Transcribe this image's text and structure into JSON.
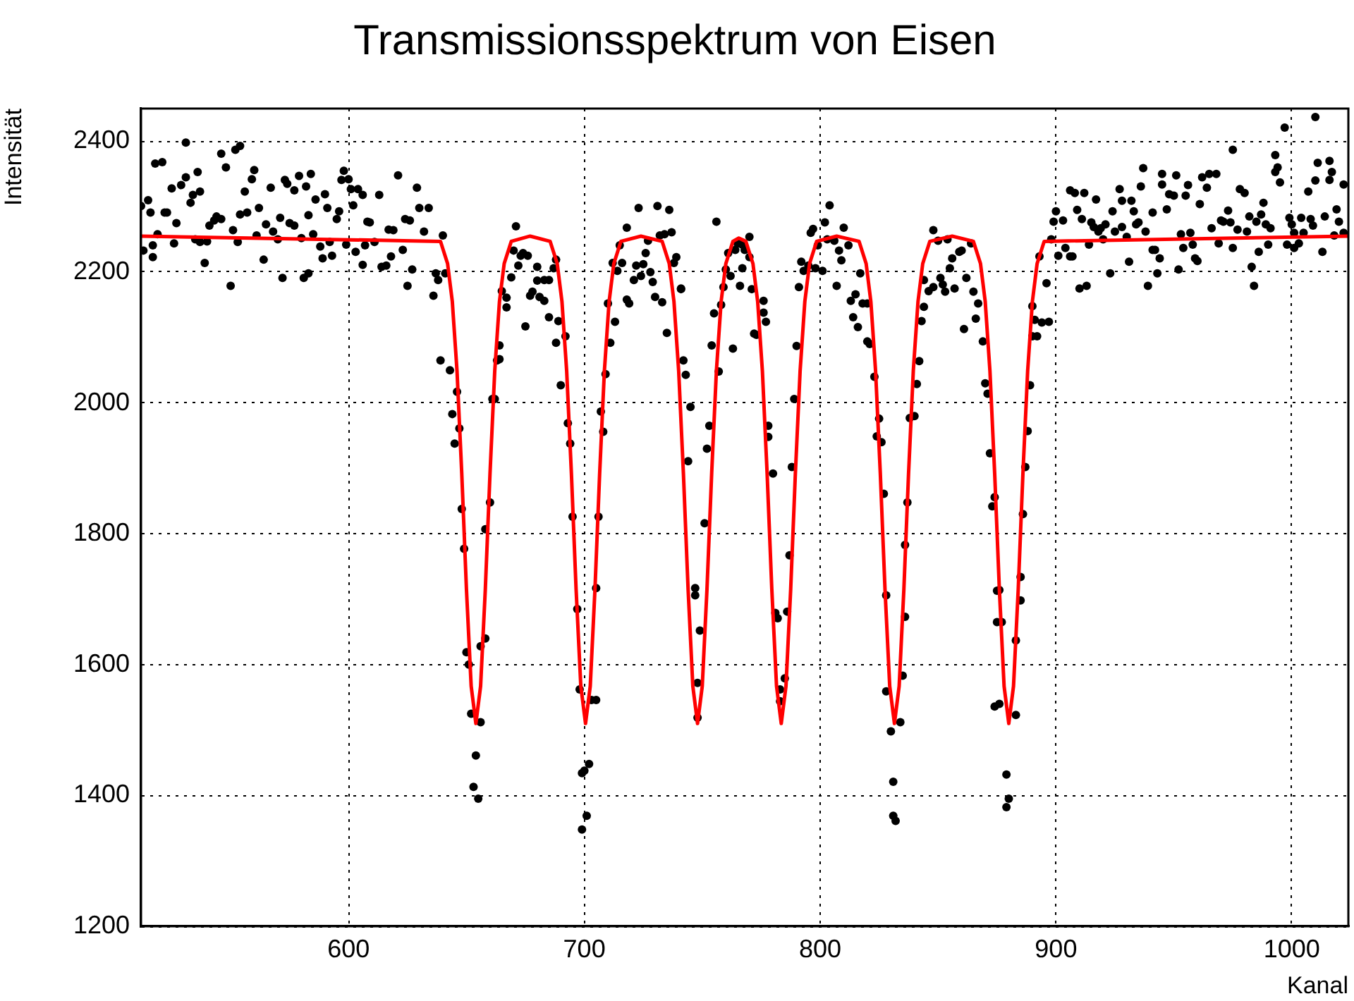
{
  "chart_data": {
    "type": "scatter",
    "title": "Transmissionsspektrum von Eisen",
    "xlabel": "Kanal",
    "ylabel": "Intensität",
    "xlim": [
      512,
      1024
    ],
    "ylim": [
      1200,
      2450
    ],
    "xticks": [
      600,
      700,
      800,
      900,
      1000
    ],
    "yticks": [
      1200,
      1400,
      1600,
      1800,
      2000,
      2200,
      2400
    ],
    "grid": true,
    "legend": false,
    "series": [
      {
        "type": "scatter",
        "color": "#000000",
        "marker": "circle",
        "x": [
          512,
          515,
          516,
          513,
          517,
          517,
          518,
          521,
          519,
          522,
          523,
          525,
          526,
          527,
          529,
          531,
          531,
          533,
          534,
          536,
          535,
          537,
          537,
          539,
          540,
          541,
          543,
          544,
          546,
          546,
          548,
          550,
          551,
          552,
          553,
          554,
          554,
          556,
          557,
          559,
          560,
          561,
          562,
          564,
          565,
          567,
          568,
          570,
          571,
          572,
          573,
          574,
          575,
          577,
          577,
          579,
          580,
          581,
          582,
          583,
          583,
          584,
          585,
          586,
          588,
          589,
          590,
          591,
          592,
          593,
          595,
          596,
          597,
          598,
          599,
          600,
          601,
          602,
          603,
          604,
          606,
          606,
          607,
          608,
          609,
          611,
          613,
          614,
          616,
          617,
          618,
          619,
          621,
          623,
          624,
          625,
          626,
          627,
          629,
          630,
          632,
          634,
          636,
          637,
          638,
          640,
          641,
          639,
          643,
          646,
          644,
          647,
          645,
          648,
          649,
          650,
          651,
          652,
          654,
          653,
          655,
          656,
          656,
          658,
          658,
          660,
          661,
          662,
          663,
          664,
          664,
          665,
          667,
          667,
          669,
          670,
          671,
          672,
          673,
          674,
          675,
          676,
          677,
          678,
          680,
          680,
          681,
          683,
          683,
          685,
          685,
          687,
          688,
          688,
          689,
          690,
          692,
          693,
          694,
          695,
          697,
          698,
          699,
          701,
          699,
          700,
          702,
          703,
          705,
          705,
          706,
          708,
          707,
          709,
          711,
          710,
          713,
          712,
          715,
          714,
          718,
          716,
          718,
          719,
          721,
          722,
          723,
          724,
          725,
          726,
          727,
          728,
          729,
          730,
          731,
          733,
          732,
          734,
          735,
          736,
          737,
          738,
          739,
          741,
          741,
          742,
          743,
          745,
          744,
          747,
          747,
          749,
          748,
          748,
          751,
          752,
          753,
          754,
          755,
          756,
          757,
          758,
          759,
          760,
          761,
          762,
          763,
          764,
          765,
          766,
          767,
          767,
          768,
          770,
          770,
          771,
          772,
          773,
          776,
          776,
          777,
          778,
          778,
          780,
          781,
          782,
          783,
          783,
          785,
          786,
          787,
          788,
          789,
          790,
          791,
          792,
          793,
          795,
          796,
          797,
          798,
          799,
          801,
          802,
          803,
          804,
          806,
          807,
          808,
          809,
          810,
          812,
          813,
          814,
          815,
          816,
          817,
          818,
          820,
          820,
          821,
          823,
          824,
          825,
          826,
          827,
          828,
          828,
          830,
          831,
          831,
          832,
          834,
          835,
          836,
          836,
          837,
          838,
          840,
          841,
          842,
          843,
          844,
          844,
          846,
          848,
          848,
          850,
          851,
          852,
          853,
          854,
          855,
          856,
          857,
          859,
          860,
          861,
          862,
          864,
          865,
          866,
          867,
          869,
          870,
          871,
          872,
          873,
          874,
          875,
          875,
          876,
          874,
          876,
          877,
          879,
          880,
          879,
          883,
          883,
          885,
          885,
          886,
          887,
          888,
          889,
          890,
          891,
          890,
          892,
          894,
          896,
          897,
          893,
          898,
          899,
          900,
          901,
          903,
          904,
          906,
          907,
          906,
          908,
          909,
          910,
          911,
          912,
          913,
          914,
          915,
          916,
          917,
          918,
          919,
          920,
          921,
          923,
          924,
          925,
          927,
          928,
          928,
          930,
          931,
          932,
          933,
          934,
          935,
          936,
          937,
          938,
          939,
          941,
          942,
          941,
          943,
          944,
          945,
          945,
          947,
          948,
          950,
          951,
          952,
          953,
          954,
          955,
          956,
          957,
          958,
          959,
          960,
          961,
          962,
          964,
          965,
          966,
          968,
          969,
          970,
          971,
          973,
          974,
          975,
          975,
          977,
          978,
          980,
          981,
          982,
          983,
          984,
          985,
          986,
          987,
          988,
          989,
          990,
          991,
          993,
          993,
          994,
          995,
          997,
          998,
          999,
          1000,
          1001,
          1001,
          1003,
          1004,
          1005,
          1007,
          1008,
          1009,
          1010,
          1010,
          1011,
          1013,
          1014,
          1016,
          1016,
          1017,
          1018,
          1019,
          1020,
          1022,
          1022
        ],
        "values": [
          2301,
          2310,
          2291,
          2233,
          2223,
          2241,
          2366,
          2368,
          2258,
          2291,
          2291,
          2328,
          2244,
          2275,
          2333,
          2345,
          2398,
          2306,
          2318,
          2353,
          2250,
          2323,
          2246,
          2214,
          2247,
          2271,
          2279,
          2285,
          2381,
          2281,
          2360,
          2179,
          2264,
          2387,
          2246,
          2393,
          2288,
          2323,
          2291,
          2342,
          2356,
          2256,
          2298,
          2219,
          2273,
          2329,
          2262,
          2250,
          2283,
          2191,
          2341,
          2335,
          2275,
          2271,
          2325,
          2347,
          2252,
          2191,
          2331,
          2287,
          2198,
          2350,
          2258,
          2311,
          2239,
          2221,
          2319,
          2298,
          2246,
          2225,
          2281,
          2293,
          2341,
          2355,
          2242,
          2342,
          2327,
          2302,
          2231,
          2327,
          2211,
          2318,
          2241,
          2277,
          2276,
          2246,
          2318,
          2208,
          2210,
          2265,
          2224,
          2264,
          2348,
          2234,
          2281,
          2179,
          2279,
          2204,
          2329,
          2298,
          2262,
          2298,
          2164,
          2198,
          2188,
          2256,
          2198,
          2065,
          2050,
          2017,
          1983,
          1961,
          1938,
          1838,
          1777,
          1619,
          1600,
          1525,
          1461,
          1413,
          1395,
          1512,
          1628,
          1640,
          1807,
          1848,
          2006,
          2006,
          2065,
          2067,
          2088,
          2171,
          2146,
          2161,
          2192,
          2233,
          2270,
          2210,
          2225,
          2229,
          2117,
          2225,
          2164,
          2170,
          2208,
          2187,
          2162,
          2188,
          2156,
          2188,
          2131,
          2206,
          2219,
          2092,
          2125,
          2027,
          2102,
          1969,
          1938,
          1826,
          1685,
          1562,
          1348,
          1369,
          1434,
          1438,
          1448,
          1546,
          1546,
          1717,
          1826,
          1956,
          1987,
          2044,
          2092,
          2152,
          2124,
          2214,
          2241,
          2202,
          2268,
          2214,
          2158,
          2152,
          2188,
          2210,
          2298,
          2194,
          2212,
          2229,
          2248,
          2200,
          2185,
          2162,
          2301,
          2154,
          2256,
          2258,
          2107,
          2295,
          2261,
          2214,
          2223,
          2175,
          2174,
          2065,
          2043,
          1994,
          1911,
          1717,
          1706,
          1652,
          1572,
          1519,
          1816,
          1930,
          1965,
          2088,
          2137,
          2277,
          2048,
          2150,
          2177,
          2204,
          2229,
          2194,
          2083,
          2234,
          2244,
          2179,
          2242,
          2206,
          2234,
          2254,
          2223,
          2174,
          2106,
          2104,
          2156,
          2138,
          2124,
          1965,
          1948,
          1892,
          1679,
          1671,
          1544,
          1562,
          1579,
          1681,
          1767,
          1902,
          2006,
          2087,
          2177,
          2216,
          2202,
          2210,
          2260,
          2266,
          2206,
          2241,
          2202,
          2276,
          2250,
          2302,
          2248,
          2179,
          2233,
          2218,
          2268,
          2241,
          2156,
          2131,
          2166,
          2116,
          2198,
          2152,
          2152,
          2094,
          2090,
          2040,
          1949,
          1976,
          1940,
          1861,
          1706,
          1559,
          1498,
          1421,
          1369,
          1361,
          1512,
          1583,
          1673,
          1783,
          1848,
          1977,
          1980,
          2029,
          2064,
          2125,
          2147,
          2188,
          2171,
          2264,
          2177,
          2248,
          2191,
          2181,
          2170,
          2250,
          2206,
          2221,
          2175,
          2231,
          2233,
          2113,
          2191,
          2244,
          2170,
          2129,
          2152,
          2094,
          2030,
          2014,
          1923,
          1842,
          1856,
          1713,
          1665,
          1540,
          1536,
          1714,
          1665,
          1432,
          1395,
          1382,
          1523,
          1637,
          1734,
          1698,
          1830,
          1902,
          1957,
          2027,
          2102,
          2127,
          2148,
          2102,
          2123,
          2183,
          2124,
          2224,
          2250,
          2277,
          2293,
          2225,
          2279,
          2237,
          2224,
          2224,
          2325,
          2321,
          2295,
          2175,
          2281,
          2321,
          2179,
          2242,
          2276,
          2269,
          2311,
          2262,
          2267,
          2250,
          2273,
          2198,
          2293,
          2262,
          2327,
          2309,
          2269,
          2254,
          2216,
          2309,
          2293,
          2273,
          2276,
          2331,
          2359,
          2262,
          2179,
          2234,
          2234,
          2291,
          2198,
          2221,
          2334,
          2350,
          2296,
          2319,
          2317,
          2348,
          2204,
          2258,
          2237,
          2317,
          2333,
          2260,
          2242,
          2221,
          2217,
          2304,
          2345,
          2329,
          2350,
          2267,
          2350,
          2244,
          2279,
          2277,
          2294,
          2276,
          2387,
          2237,
          2265,
          2327,
          2321,
          2262,
          2285,
          2208,
          2179,
          2277,
          2231,
          2288,
          2306,
          2273,
          2242,
          2267,
          2353,
          2379,
          2360,
          2337,
          2421,
          2242,
          2283,
          2273,
          2237,
          2260,
          2244,
          2283,
          2260,
          2323,
          2281,
          2271,
          2437,
          2340,
          2367,
          2231,
          2285,
          2341,
          2370,
          2353,
          2256,
          2296,
          2277,
          2334,
          2260
        ]
      },
      {
        "type": "line",
        "color": "#ff0000",
        "marker": "none",
        "line_style": "solid",
        "x": [
          512,
          639,
          642,
          644,
          646,
          648,
          650,
          652,
          654,
          656,
          658,
          660,
          662,
          664,
          666,
          669,
          677,
          685.5,
          688.5,
          690.5,
          692.5,
          694.5,
          696.5,
          698.5,
          700.5,
          702.5,
          704.5,
          706.5,
          708.5,
          710.5,
          712.5,
          715.5,
          724,
          733,
          736,
          738,
          740,
          742,
          744,
          746,
          748,
          750,
          752,
          754,
          756,
          758,
          760,
          763,
          765.5,
          768.5,
          771.5,
          773.5,
          775.5,
          777.5,
          779.5,
          781.5,
          783.5,
          785.5,
          787.5,
          789.5,
          791.5,
          793.5,
          795.5,
          798.5,
          807,
          816.5,
          819.5,
          821.5,
          823.5,
          825.5,
          827.5,
          829.5,
          831.5,
          833.5,
          835.5,
          837.5,
          839.5,
          841.5,
          843.5,
          846.5,
          856,
          865,
          868,
          870,
          872,
          874,
          876,
          878,
          880,
          882,
          884,
          886,
          888,
          890,
          892,
          895,
          1024
        ],
        "values": [
          2255,
          2247,
          2213,
          2155,
          2049,
          1893,
          1715,
          1567,
          1510,
          1567,
          1715,
          1893,
          2049,
          2155,
          2213,
          2247,
          2255,
          2247,
          2213,
          2155,
          2049,
          1893,
          1715,
          1567,
          1510,
          1567,
          1715,
          1893,
          2049,
          2155,
          2213,
          2247,
          2255,
          2247,
          2213,
          2155,
          2049,
          1893,
          1715,
          1567,
          1510,
          1567,
          1715,
          1893,
          2049,
          2155,
          2213,
          2247,
          2252,
          2247,
          2213,
          2155,
          2049,
          1893,
          1715,
          1567,
          1510,
          1567,
          1715,
          1893,
          2049,
          2155,
          2213,
          2247,
          2255,
          2247,
          2213,
          2155,
          2049,
          1893,
          1715,
          1567,
          1510,
          1567,
          1715,
          1893,
          2049,
          2155,
          2213,
          2247,
          2255,
          2247,
          2213,
          2155,
          2049,
          1893,
          1715,
          1567,
          1510,
          1567,
          1715,
          1893,
          2049,
          2155,
          2213,
          2247,
          2255
        ]
      }
    ]
  }
}
